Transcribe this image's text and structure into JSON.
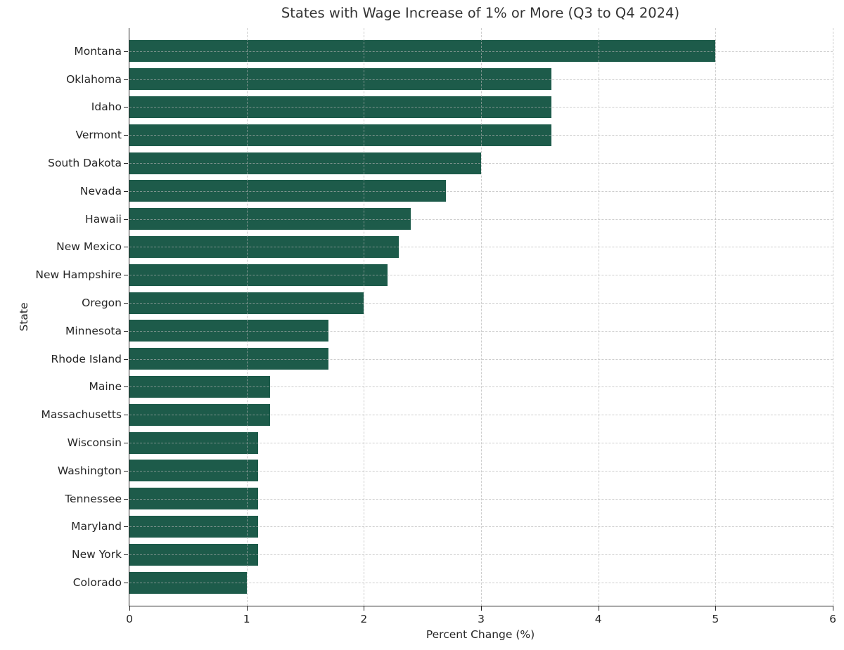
{
  "chart_data": {
    "type": "bar",
    "orientation": "horizontal",
    "title": "States with Wage Increase of 1% or More (Q3 to Q4 2024)",
    "xlabel": "Percent Change (%)",
    "ylabel": "State",
    "xlim": [
      0,
      6
    ],
    "xticks": [
      0,
      1,
      2,
      3,
      4,
      5,
      6
    ],
    "grid": "dashed, both axes",
    "legend": "none",
    "bar_color": "#1d5b4a",
    "categories": [
      "Montana",
      "Oklahoma",
      "Idaho",
      "Vermont",
      "South Dakota",
      "Nevada",
      "Hawaii",
      "New Mexico",
      "New Hampshire",
      "Oregon",
      "Minnesota",
      "Rhode Island",
      "Maine",
      "Massachusetts",
      "Wisconsin",
      "Washington",
      "Tennessee",
      "Maryland",
      "New York",
      "Colorado"
    ],
    "values": [
      5.0,
      3.6,
      3.6,
      3.6,
      3.0,
      2.7,
      2.4,
      2.3,
      2.2,
      2.0,
      1.7,
      1.7,
      1.2,
      1.2,
      1.1,
      1.1,
      1.1,
      1.1,
      1.1,
      1.0
    ]
  }
}
